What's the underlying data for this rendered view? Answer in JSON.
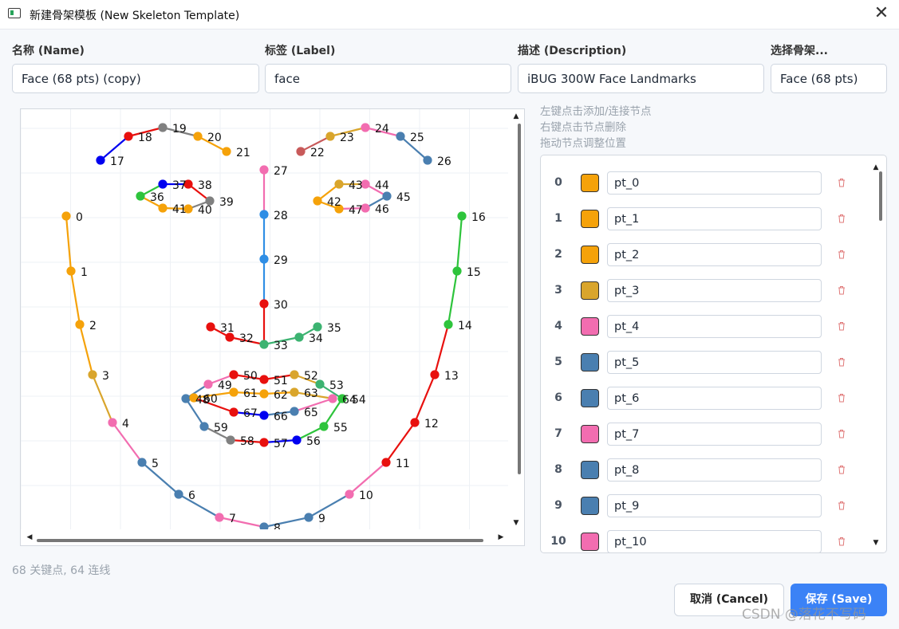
{
  "window": {
    "title": "新建骨架模板 (New Skeleton Template)",
    "close_icon": "close-icon"
  },
  "form": {
    "name_label": "名称 (Name)",
    "name_value": "Face (68 pts) (copy)",
    "label_label": "标签 (Label)",
    "label_value": "face",
    "desc_label": "描述 (Description)",
    "desc_value": "iBUG 300W Face Landmarks",
    "skeleton_label": "选择骨架...",
    "skeleton_value": "Face (68 pts)"
  },
  "hints": [
    "左键点击添加/连接节点",
    "右键点击节点删除",
    "拖动节点调整位置"
  ],
  "colors": {
    "orange": "#f5a20a",
    "gold": "#d9a52c",
    "pink": "#f26db0",
    "steel": "#4a7fb0",
    "green": "#2ec43c",
    "red": "#e8100e",
    "blue": "#0000f0",
    "gray": "#808080",
    "brick": "#c85a5a",
    "sky": "#2f8ee5",
    "mint": "#3cb371"
  },
  "keypoints": [
    {
      "id": "0",
      "c": "orange"
    },
    {
      "id": "1",
      "c": "orange"
    },
    {
      "id": "2",
      "c": "orange"
    },
    {
      "id": "3",
      "c": "gold"
    },
    {
      "id": "4",
      "c": "pink"
    },
    {
      "id": "5",
      "c": "steel"
    },
    {
      "id": "6",
      "c": "steel"
    },
    {
      "id": "7",
      "c": "pink"
    },
    {
      "id": "8",
      "c": "steel"
    },
    {
      "id": "9",
      "c": "steel"
    },
    {
      "id": "10",
      "c": "pink"
    },
    {
      "id": "11",
      "c": "red"
    },
    {
      "id": "12",
      "c": "red"
    },
    {
      "id": "13",
      "c": "red"
    },
    {
      "id": "14",
      "c": "green"
    },
    {
      "id": "15",
      "c": "green"
    },
    {
      "id": "16",
      "c": "green"
    },
    {
      "id": "17",
      "c": "blue"
    },
    {
      "id": "18",
      "c": "red"
    },
    {
      "id": "19",
      "c": "gray"
    },
    {
      "id": "20",
      "c": "orange"
    },
    {
      "id": "21",
      "c": "orange"
    },
    {
      "id": "22",
      "c": "brick"
    },
    {
      "id": "23",
      "c": "gold"
    },
    {
      "id": "24",
      "c": "pink"
    },
    {
      "id": "25",
      "c": "steel"
    },
    {
      "id": "26",
      "c": "steel"
    },
    {
      "id": "27",
      "c": "pink"
    },
    {
      "id": "28",
      "c": "sky"
    },
    {
      "id": "29",
      "c": "sky"
    },
    {
      "id": "30",
      "c": "red"
    },
    {
      "id": "31",
      "c": "red"
    },
    {
      "id": "32",
      "c": "red"
    },
    {
      "id": "33",
      "c": "mint"
    },
    {
      "id": "34",
      "c": "mint"
    },
    {
      "id": "35",
      "c": "mint"
    },
    {
      "id": "36",
      "c": "green"
    },
    {
      "id": "37",
      "c": "blue"
    },
    {
      "id": "38",
      "c": "red"
    },
    {
      "id": "39",
      "c": "gray"
    },
    {
      "id": "40",
      "c": "orange"
    },
    {
      "id": "41",
      "c": "orange"
    },
    {
      "id": "42",
      "c": "orange"
    },
    {
      "id": "43",
      "c": "gold"
    },
    {
      "id": "44",
      "c": "pink"
    },
    {
      "id": "45",
      "c": "steel"
    },
    {
      "id": "46",
      "c": "pink"
    },
    {
      "id": "47",
      "c": "orange"
    },
    {
      "id": "48",
      "c": "steel"
    },
    {
      "id": "49",
      "c": "pink"
    },
    {
      "id": "50",
      "c": "red"
    },
    {
      "id": "51",
      "c": "red"
    },
    {
      "id": "52",
      "c": "gold"
    },
    {
      "id": "53",
      "c": "mint"
    },
    {
      "id": "54",
      "c": "green"
    },
    {
      "id": "55",
      "c": "green"
    },
    {
      "id": "56",
      "c": "blue"
    },
    {
      "id": "57",
      "c": "red"
    },
    {
      "id": "58",
      "c": "gray"
    },
    {
      "id": "59",
      "c": "steel"
    },
    {
      "id": "60",
      "c": "orange"
    },
    {
      "id": "61",
      "c": "orange"
    },
    {
      "id": "62",
      "c": "orange"
    },
    {
      "id": "63",
      "c": "gold"
    },
    {
      "id": "64",
      "c": "pink"
    },
    {
      "id": "65",
      "c": "steel"
    },
    {
      "id": "66",
      "c": "blue"
    },
    {
      "id": "67",
      "c": "red"
    }
  ],
  "list_rows": [
    {
      "index": "0",
      "name": "pt_0",
      "color": "#f5a20a"
    },
    {
      "index": "1",
      "name": "pt_1",
      "color": "#f5a20a"
    },
    {
      "index": "2",
      "name": "pt_2",
      "color": "#f5a20a"
    },
    {
      "index": "3",
      "name": "pt_3",
      "color": "#d9a52c"
    },
    {
      "index": "4",
      "name": "pt_4",
      "color": "#f26db0"
    },
    {
      "index": "5",
      "name": "pt_5",
      "color": "#4a7fb0"
    },
    {
      "index": "6",
      "name": "pt_6",
      "color": "#4a7fb0"
    },
    {
      "index": "7",
      "name": "pt_7",
      "color": "#f26db0"
    },
    {
      "index": "8",
      "name": "pt_8",
      "color": "#4a7fb0"
    },
    {
      "index": "9",
      "name": "pt_9",
      "color": "#4a7fb0"
    },
    {
      "index": "10",
      "name": "pt_10",
      "color": "#f26db0"
    }
  ],
  "status": "68 关键点, 64 连线",
  "buttons": {
    "cancel": "取消 (Cancel)",
    "save": "保存 (Save)"
  },
  "watermark": "CSDN @落花不写码"
}
